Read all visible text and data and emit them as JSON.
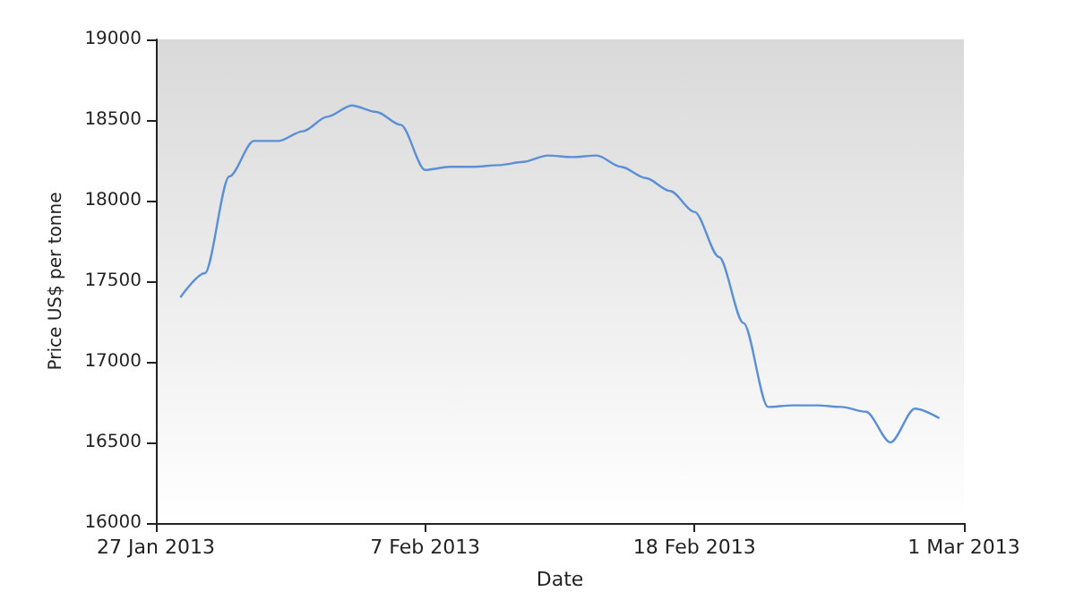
{
  "chart_data": {
    "type": "line",
    "xlabel": "Date",
    "ylabel": "Price US$ per tonne",
    "x": [
      "2013-01-28",
      "2013-01-29",
      "2013-01-30",
      "2013-01-31",
      "2013-02-01",
      "2013-02-02",
      "2013-02-03",
      "2013-02-04",
      "2013-02-05",
      "2013-02-06",
      "2013-02-07",
      "2013-02-08",
      "2013-02-09",
      "2013-02-10",
      "2013-02-11",
      "2013-02-12",
      "2013-02-13",
      "2013-02-14",
      "2013-02-15",
      "2013-02-16",
      "2013-02-17",
      "2013-02-18",
      "2013-02-19",
      "2013-02-20",
      "2013-02-21",
      "2013-02-22",
      "2013-02-23",
      "2013-02-24",
      "2013-02-25",
      "2013-02-26",
      "2013-02-27",
      "2013-02-28"
    ],
    "series": [
      {
        "color": "#5b8fd6",
        "values": [
          17400,
          17550,
          18150,
          18370,
          18370,
          18430,
          18520,
          18590,
          18550,
          18470,
          18190,
          18210,
          18210,
          18220,
          18240,
          18280,
          18270,
          18280,
          18210,
          18140,
          18060,
          17930,
          17650,
          17240,
          16720,
          16730,
          16730,
          16720,
          16690,
          16500,
          16710,
          16650
        ]
      }
    ],
    "xlim": [
      "2013-01-27",
      "2013-03-01"
    ],
    "xticks": [
      {
        "value": "2013-01-27",
        "label": "27 Jan 2013"
      },
      {
        "value": "2013-02-07",
        "label": "7 Feb 2013"
      },
      {
        "value": "2013-02-18",
        "label": "18 Feb 2013"
      },
      {
        "value": "2013-03-01",
        "label": "1 Mar 2013"
      }
    ],
    "ylim": [
      16000,
      19000
    ],
    "yticks": [
      16000,
      16500,
      17000,
      17500,
      18000,
      18500,
      19000
    ],
    "grid": false,
    "marker": "none",
    "line_style": "solid"
  }
}
